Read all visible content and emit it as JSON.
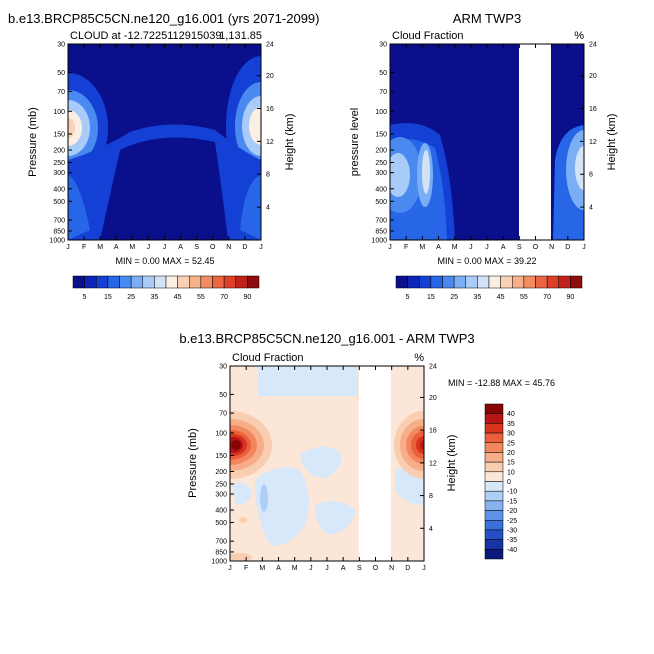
{
  "months": [
    "J",
    "F",
    "M",
    "A",
    "M",
    "J",
    "J",
    "A",
    "S",
    "O",
    "N",
    "D",
    "J"
  ],
  "pressure_ticks": [
    "30",
    "50",
    "70",
    "100",
    "150",
    "200",
    "250",
    "300",
    "400",
    "500",
    "700",
    "850",
    "1000"
  ],
  "height_ticks": [
    "4",
    "8",
    "12",
    "16",
    "20",
    "24"
  ],
  "panels": {
    "model": {
      "title": "b.e13.BRCP85C5CN.ne120_g16.001 (yrs 2071-2099)",
      "left_label": "CLOUD at -12.7225112915039",
      "right_label": "1,131.85",
      "ylabel": "Pressure (mb)",
      "y2label": "Height (km)",
      "stats": "MIN =   0.00 MAX =  52.45"
    },
    "obs": {
      "title": "ARM TWP3",
      "left_label": "Cloud Fraction",
      "right_label": "%",
      "ylabel": "pressure level",
      "y2label": "Height (km)",
      "stats": "MIN =   0.00 MAX =  39.22"
    },
    "diff": {
      "title": "b.e13.BRCP85C5CN.ne120_g16.001 - ARM TWP3",
      "left_label": "Cloud Fraction",
      "right_label": "%",
      "ylabel": "Pressure (mb)",
      "y2label": "Height (km)",
      "stats": "MIN = -12.88 MAX =  45.76"
    }
  },
  "colorbar_labels": [
    "5",
    "15",
    "25",
    "35",
    "45",
    "55",
    "70",
    "90"
  ],
  "diff_colorbar_labels": [
    "40",
    "35",
    "30",
    "25",
    "20",
    "15",
    "10",
    "0",
    "-10",
    "-15",
    "-20",
    "-25",
    "-30",
    "-35",
    "-40"
  ],
  "chart_data": [
    {
      "type": "heatmap",
      "title": "b.e13.BRCP85C5CN.ne120_g16.001 (yrs 2071-2099)",
      "xlabel": "",
      "ylabel": "Pressure (mb)",
      "y2label": "Height (km)",
      "x": [
        "J",
        "F",
        "M",
        "A",
        "M",
        "J",
        "J",
        "A",
        "S",
        "O",
        "N",
        "D",
        "J"
      ],
      "ylim": [
        1000,
        30
      ],
      "min": 0.0,
      "max": 52.45,
      "levels": [
        5,
        10,
        15,
        20,
        25,
        30,
        35,
        40,
        45,
        50,
        55,
        60,
        70,
        80,
        90,
        100
      ]
    },
    {
      "type": "heatmap",
      "title": "ARM TWP3",
      "xlabel": "",
      "ylabel": "pressure level",
      "y2label": "Height (km)",
      "x": [
        "J",
        "F",
        "M",
        "A",
        "M",
        "J",
        "J",
        "A",
        "S",
        "O",
        "N",
        "D",
        "J"
      ],
      "ylim": [
        1000,
        30
      ],
      "min": 0.0,
      "max": 39.22,
      "missing_months": [
        "S",
        "O"
      ],
      "levels": [
        5,
        10,
        15,
        20,
        25,
        30,
        35,
        40,
        45,
        50,
        55,
        60,
        70,
        80,
        90,
        100
      ]
    },
    {
      "type": "heatmap",
      "title": "b.e13.BRCP85C5CN.ne120_g16.001 - ARM TWP3",
      "xlabel": "",
      "ylabel": "Pressure (mb)",
      "y2label": "Height (km)",
      "x": [
        "J",
        "F",
        "M",
        "A",
        "M",
        "J",
        "J",
        "A",
        "S",
        "O",
        "N",
        "D",
        "J"
      ],
      "ylim": [
        1000,
        30
      ],
      "min": -12.88,
      "max": 45.76,
      "missing_months": [
        "S",
        "O"
      ],
      "levels": [
        -40,
        -35,
        -30,
        -25,
        -20,
        -15,
        -10,
        0,
        10,
        15,
        20,
        25,
        30,
        35,
        40
      ]
    }
  ],
  "colors": {
    "seq": [
      "#0a0f8c",
      "#0d24b8",
      "#1440d6",
      "#2766e6",
      "#4a8af0",
      "#7aaff5",
      "#a9cbf8",
      "#d2e3f7",
      "#fbeee2",
      "#f9d1b6",
      "#f6b08a",
      "#f28c62",
      "#ec6543",
      "#dd3f27",
      "#c0221a",
      "#8f0c0c"
    ],
    "div_pos": [
      "#fbe6d8",
      "#f9cdb0",
      "#f6ad88",
      "#f2875e",
      "#ea5f3c",
      "#d8331f",
      "#b81414",
      "#860606"
    ],
    "div_neg": [
      "#d8e8fb",
      "#aecff5",
      "#86b3ee",
      "#5f92e6",
      "#3b70da",
      "#2450c6",
      "#1533a5",
      "#0b1a7a"
    ],
    "missing": "#ffffff"
  }
}
